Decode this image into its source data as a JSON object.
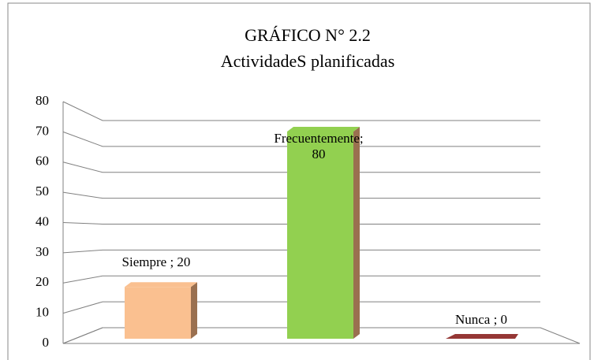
{
  "chart_data": {
    "type": "bar3d",
    "title": "GRÁFICO N° 2.2",
    "subtitle": "ActividadeS planificadas",
    "categories": [
      "Siempre",
      "Frecuentemente",
      "Nunca"
    ],
    "values": [
      20,
      80,
      0
    ],
    "value_labels": [
      "Siempre ; 20",
      "Frecuentemente; 80",
      "Nunca ; 0"
    ],
    "colors": [
      "#fac090",
      "#92d050",
      "#c0504d"
    ],
    "ylim": [
      0,
      80
    ],
    "yticks": [
      0,
      10,
      20,
      30,
      40,
      50,
      60,
      70,
      80
    ],
    "grid": true
  }
}
